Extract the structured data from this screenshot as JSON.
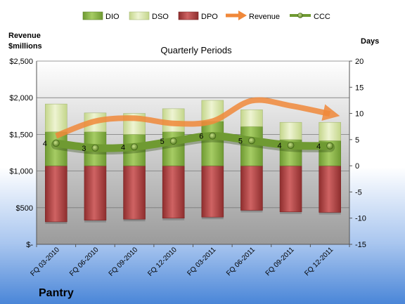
{
  "chart_data": {
    "type": "bar",
    "title": "Quarterly Periods",
    "footer_title": "Pantry",
    "left_axis_label_line1": "Revenue",
    "left_axis_label_line2": "$millions",
    "right_axis_label": "Days",
    "categories": [
      "FQ 03-2010",
      "FQ 06-2010",
      "FQ 09-2010",
      "FQ 12-2010",
      "FQ 03-2011",
      "FQ 06-2011",
      "FQ 09-2011",
      "FQ 12-2011"
    ],
    "left_axis": {
      "min": 0,
      "max": 2500,
      "step": 500,
      "tick_labels": [
        "$-",
        "$500",
        "$1,000",
        "$1,500",
        "$2,000",
        "$2,500"
      ]
    },
    "right_axis": {
      "min": -15,
      "max": 20,
      "step": 5,
      "tick_labels": [
        "-15",
        "-10",
        "-5",
        "0",
        "5",
        "10",
        "15",
        "20"
      ]
    },
    "series": [
      {
        "name": "DIO",
        "axis": "days",
        "stack": "above-zero",
        "color": "#8db84a",
        "values": [
          6.5,
          6.5,
          6.0,
          6.5,
          8.5,
          7.5,
          5.0,
          4.8
        ]
      },
      {
        "name": "DSO",
        "axis": "days",
        "stack": "above-dio",
        "color": "#d7e4a8",
        "values": [
          5.3,
          3.6,
          4.0,
          4.4,
          4.0,
          3.2,
          3.3,
          3.5
        ]
      },
      {
        "name": "DPO",
        "axis": "days",
        "stack": "below-zero",
        "color": "#b84a4a",
        "values": [
          -10.7,
          -10.4,
          -10.2,
          -10.0,
          -9.8,
          -8.5,
          -8.8,
          -8.9
        ]
      },
      {
        "name": "Revenue",
        "axis": "revenue",
        "type": "arrow",
        "color": "#f0883a",
        "values": [
          1480,
          1680,
          1720,
          1650,
          1680,
          1960,
          1890,
          1780
        ]
      },
      {
        "name": "CCC",
        "axis": "days",
        "type": "line",
        "color": "#557a2a",
        "values": [
          4.3,
          3.4,
          3.6,
          4.7,
          5.7,
          4.8,
          3.9,
          3.8
        ]
      }
    ],
    "data_labels": {
      "CCC": [
        "4",
        "3",
        "4",
        "5",
        "6",
        "5",
        "4",
        "4"
      ]
    },
    "legend": {
      "placement": "top",
      "items": [
        "DIO",
        "DSO",
        "DPO",
        "Revenue",
        "CCC"
      ]
    },
    "grid": true
  }
}
